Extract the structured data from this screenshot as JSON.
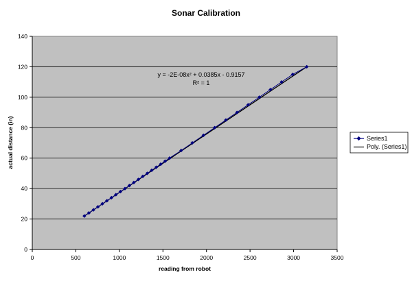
{
  "chart_data": {
    "type": "scatter",
    "title": "Sonar Calibration",
    "xlabel": "reading from robot",
    "ylabel": "actual distance (in)",
    "xlim": [
      0,
      3500
    ],
    "ylim": [
      0,
      140
    ],
    "xticks": [
      0,
      500,
      1000,
      1500,
      2000,
      2500,
      3000,
      3500
    ],
    "yticks": [
      0,
      20,
      40,
      60,
      80,
      100,
      120,
      140
    ],
    "grid": "horizontal",
    "plot_background": "#c0c0c0",
    "legend_position": "right",
    "series": [
      {
        "name": "Series1",
        "color": "#000080",
        "marker": "diamond",
        "x": [
          598,
          650,
          702,
          754,
          805,
          857,
          909,
          960,
          1012,
          1064,
          1115,
          1166,
          1218,
          1269,
          1320,
          1371,
          1423,
          1474,
          1525,
          1576,
          1709,
          1837,
          1965,
          2094,
          2222,
          2350,
          2478,
          2606,
          2734,
          2862,
          2990,
          3151
        ],
        "y": [
          22,
          24,
          26,
          28,
          30,
          32,
          34,
          36,
          38,
          40,
          42,
          44,
          46,
          48,
          50,
          52,
          54,
          56,
          58,
          60,
          65,
          70,
          75,
          80,
          85,
          90,
          95,
          100,
          105,
          110,
          115,
          120
        ]
      },
      {
        "name": "Poly. (Series1)",
        "color": "#000000",
        "type": "trendline",
        "x": [
          598,
          3151
        ],
        "y": [
          22,
          120
        ]
      }
    ],
    "annotations": {
      "equation": "y = -2E-08x² + 0.0385x - 0.9157",
      "r_squared": "R² = 1"
    }
  }
}
